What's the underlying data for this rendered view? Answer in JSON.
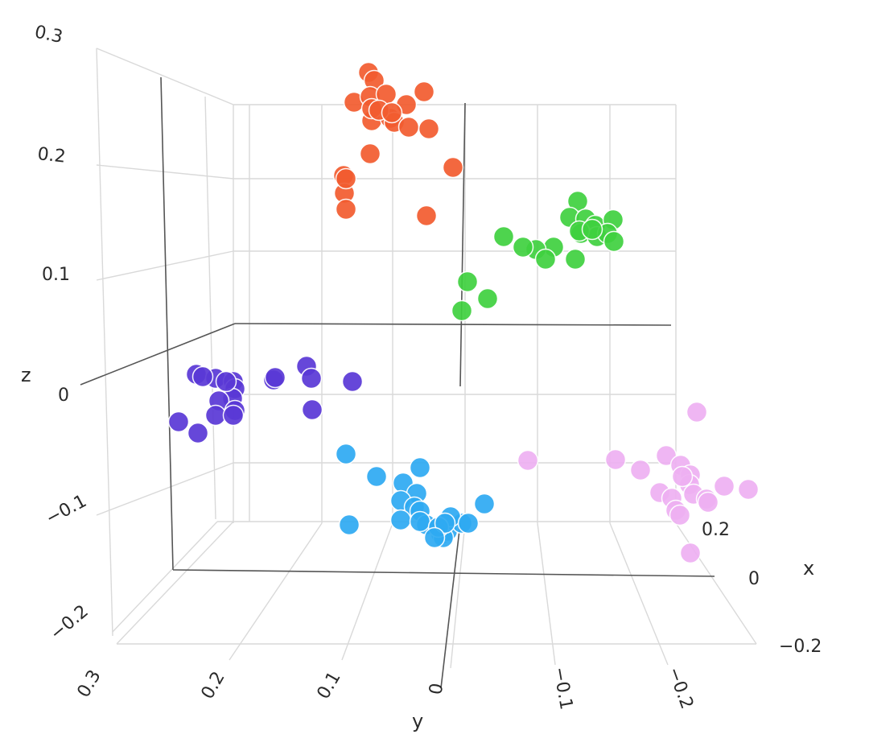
{
  "chart_data": {
    "type": "scatter3d",
    "title": "",
    "axes": {
      "x": {
        "label": "x",
        "ticks": [
          "0.2",
          "0",
          "−0.2"
        ]
      },
      "y": {
        "label": "y",
        "ticks": [
          "0.3",
          "0.2",
          "0.1",
          "0",
          "−0.1",
          "−0.2"
        ]
      },
      "z": {
        "label": "z",
        "ticks": [
          "0.3",
          "0.2",
          "0.1",
          "0",
          "−0.1",
          "−0.2"
        ]
      }
    },
    "grid": true,
    "legend": "none",
    "series": [
      {
        "color": "#f25c2f",
        "approx_center": {
          "x": 0.02,
          "y": 0.08,
          "z": 0.24
        },
        "count": 22
      },
      {
        "color": "#3fd13f",
        "approx_center": {
          "x": 0.02,
          "y": -0.12,
          "z": 0.13
        },
        "count": 20
      },
      {
        "color": "#5a38d6",
        "approx_center": {
          "x": 0.0,
          "y": 0.2,
          "z": -0.01
        },
        "count": 19
      },
      {
        "color": "#2eaaf2",
        "approx_center": {
          "x": 0.0,
          "y": 0.02,
          "z": -0.14
        },
        "count": 22
      },
      {
        "color": "#eeb0f2",
        "approx_center": {
          "x": 0.15,
          "y": -0.2,
          "z": -0.1
        },
        "count": 19
      }
    ]
  }
}
